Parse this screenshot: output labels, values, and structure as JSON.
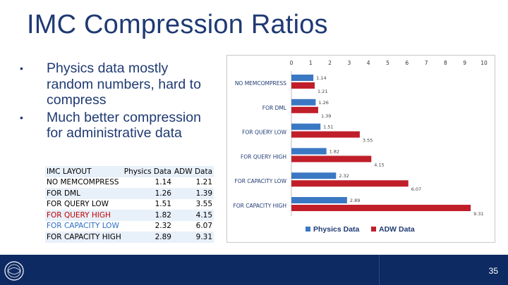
{
  "title": "IMC Compression Ratios",
  "bullets": [
    "Physics data mostly random numbers, hard to compress",
    "Much better compression for administrative data"
  ],
  "table": {
    "header": [
      "IMC LAYOUT",
      "Physics Data",
      "ADW Data"
    ],
    "rows": [
      [
        "NO MEMCOMPRESS",
        "1.14",
        "1.21"
      ],
      [
        "FOR DML",
        "1.26",
        "1.39"
      ],
      [
        "FOR QUERY LOW",
        "1.51",
        "3.55"
      ],
      [
        "FOR QUERY HIGH",
        "1.82",
        "4.15"
      ],
      [
        "FOR CAPACITY LOW",
        "2.32",
        "6.07"
      ],
      [
        "FOR CAPACITY HIGH",
        "2.89",
        "9.31"
      ]
    ],
    "row_colors": [
      "#000000",
      "#000000",
      "#000000",
      "#c00000",
      "#2e6fc4",
      "#000000"
    ]
  },
  "chart_data": {
    "type": "bar",
    "orientation": "horizontal",
    "categories": [
      "NO MEMCOMPRESS",
      "FOR DML",
      "FOR QUERY LOW",
      "FOR QUERY HIGH",
      "FOR CAPACITY LOW",
      "FOR CAPACITY HIGH"
    ],
    "series": [
      {
        "name": "Physics Data",
        "values": [
          1.14,
          1.26,
          1.51,
          1.82,
          2.32,
          2.89
        ],
        "color": "#3b78c4"
      },
      {
        "name": "ADW Data",
        "values": [
          1.21,
          1.39,
          3.55,
          4.15,
          6.07,
          9.31
        ],
        "color": "#c01f2a"
      }
    ],
    "xlim": [
      0,
      10
    ],
    "xticks": [
      "0",
      "1",
      "2",
      "3",
      "4",
      "5",
      "6",
      "7",
      "8",
      "9",
      "10"
    ],
    "axis_position": "top",
    "legend": "bottom",
    "grid": false,
    "data_labels": true
  },
  "footer": {
    "page_number": "35",
    "logo": "cern-logo"
  }
}
